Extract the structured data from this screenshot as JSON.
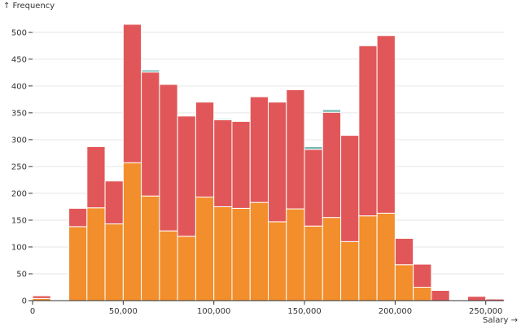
{
  "chart_data": {
    "type": "bar",
    "stacked": true,
    "title": "",
    "ylabel": "↑ Frequency",
    "xlabel": "Salary →",
    "ylim": [
      0,
      530
    ],
    "xlim": [
      0,
      260000
    ],
    "bin_width": 10000,
    "grid": true,
    "y_ticks": [
      0,
      50,
      100,
      150,
      200,
      250,
      300,
      350,
      400,
      450,
      500
    ],
    "y_tick_labels": [
      "0",
      "50",
      "100",
      "150",
      "200",
      "250",
      "300",
      "350",
      "400",
      "450",
      "500"
    ],
    "x_ticks": [
      0,
      50000,
      100000,
      150000,
      200000,
      250000
    ],
    "x_tick_labels": [
      "0",
      "50,000",
      "100,000",
      "150,000",
      "200,000",
      "250,000"
    ],
    "bins_start": [
      0,
      20000,
      30000,
      40000,
      50000,
      60000,
      70000,
      80000,
      90000,
      100000,
      110000,
      120000,
      130000,
      140000,
      150000,
      160000,
      170000,
      180000,
      190000,
      200000,
      210000,
      220000,
      240000,
      250000
    ],
    "series": [
      {
        "name": "orange",
        "color": "#f28e2c",
        "values": [
          4,
          138,
          173,
          143,
          257,
          195,
          130,
          120,
          193,
          175,
          172,
          183,
          147,
          171,
          139,
          155,
          110,
          158,
          163,
          67,
          25,
          0,
          0,
          0
        ]
      },
      {
        "name": "red",
        "color": "#e15759",
        "values": [
          5,
          34,
          114,
          80,
          258,
          231,
          273,
          224,
          177,
          162,
          162,
          197,
          223,
          222,
          143,
          196,
          198,
          317,
          331,
          49,
          43,
          19,
          8,
          3
        ]
      },
      {
        "name": "teal",
        "color": "#76b7b2",
        "values": [
          0,
          0,
          0,
          0,
          0,
          4,
          0,
          0,
          0,
          2,
          0,
          0,
          0,
          0,
          5,
          5,
          0,
          0,
          0,
          0,
          0,
          0,
          0,
          0
        ]
      }
    ]
  }
}
